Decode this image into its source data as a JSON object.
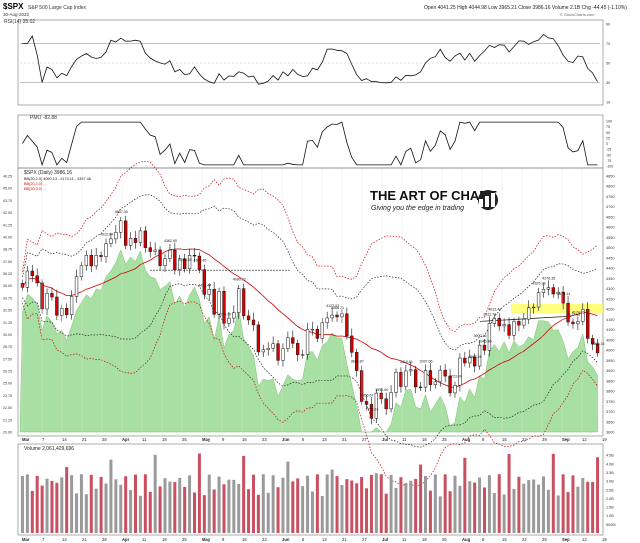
{
  "header": {
    "symbol": "$SPX",
    "name": "S&P 500 Large Cap Index",
    "exchange": "INDX",
    "date": "30-Aug-2022",
    "ohlc": "Open 4041.25  High 4044.98  Low 3965.21  Close 3986.16  Volume 2.1B  Chg -44.45 (-1.10%)",
    "copyright": "© StockCharts.com"
  },
  "rsi_panel": {
    "label": "RSI(14) 35.02",
    "ticks": [
      "90",
      "70",
      "50",
      "30",
      "10"
    ]
  },
  "pmo_panel": {
    "label": "PMO -82.88",
    "ticks": [
      "100",
      "75",
      "50",
      "25",
      "0",
      "-25",
      "-50",
      "-75",
      "-100"
    ]
  },
  "price_panel": {
    "label": "$SPX (Daily) 3986.16",
    "legend": [
      "BB(20,2.0) 4090.13 - 4174.11 - 4367.46",
      "BB(20,2.0) ...",
      "BB(20,3.0) ..."
    ],
    "left_ticks": [
      "46.25",
      "45.00",
      "43.75",
      "42.50",
      "41.25",
      "40.00",
      "38.75",
      "37.50",
      "36.25",
      "35.00",
      "33.75",
      "32.50",
      "31.25",
      "30.00",
      "28.75",
      "27.50",
      "26.25",
      "25.00",
      "23.75",
      "22.50",
      "21.25",
      "20.00"
    ],
    "right_ticks": [
      "4850",
      "4800",
      "4750",
      "4700",
      "4650",
      "4600",
      "4550",
      "4500",
      "4450",
      "4400",
      "4350",
      "4300",
      "4250",
      "4200",
      "4150",
      "4100",
      "4050",
      "4000",
      "3950",
      "3900",
      "3850",
      "3800",
      "3750",
      "3700",
      "3650",
      "3600"
    ],
    "annotations": [
      "4637.30",
      "4512.94",
      "4388.40",
      "4407.44",
      "4362.90",
      "4303.45",
      "4170.70",
      "4090.72",
      "4127.03",
      "4066.71",
      "3991.00",
      "3810.61",
      "3856.67",
      "3900.16",
      "3937.06",
      "3779.67",
      "3636.87",
      "3723.00",
      "3945.86",
      "3863.26",
      "4012.44",
      "3911.74",
      "4325.28",
      "4177.95",
      "4276.35",
      "4174.82",
      "4179.14",
      "3986.16"
    ],
    "watermark_title": "THE ART OF CHART",
    "watermark_tagline": "Giving you the edge in trading"
  },
  "volume_panel": {
    "label": "Volume 2,061,429,696",
    "ticks": [
      "4.5B",
      "4.0B",
      "3.5B",
      "3.0B",
      "2.5B",
      "2.0B",
      "1.5B",
      "1.0B",
      "500M"
    ]
  },
  "x_axis": {
    "labels": [
      "Mar",
      "7",
      "14",
      "21",
      "28",
      "Apr",
      "11",
      "18",
      "25",
      "May",
      "9",
      "16",
      "23",
      "Jun",
      "6",
      "13",
      "21",
      "27",
      "Jul",
      "11",
      "18",
      "25",
      "Aug",
      "8",
      "15",
      "22",
      "29",
      "Sep",
      "12",
      "19"
    ]
  },
  "colors": {
    "up": "#ffffff",
    "down": "#d40000",
    "band_fill": "#a8e0a3",
    "highlight": "#ffff66",
    "ma_red": "#cc0000"
  },
  "chart_data": {
    "type": "candlestick",
    "title": "$SPX (Daily) 3986.16",
    "ylim": [
      3600,
      4850
    ],
    "closes": [
      4306,
      4386,
      4363,
      4328,
      4201,
      4277,
      4259,
      4170,
      4204,
      4173,
      4262,
      4358,
      4412,
      4463,
      4411,
      4463,
      4456,
      4520,
      4543,
      4575,
      4631,
      4511,
      4546,
      4525,
      4582,
      4500,
      4481,
      4489,
      4412,
      4447,
      4488,
      4393,
      4446,
      4397,
      4463,
      4459,
      4393,
      4272,
      4297,
      4175,
      4287,
      4131,
      4156,
      4183,
      4300,
      4167,
      4147,
      4123,
      3991,
      4002,
      4009,
      4031,
      3950,
      4008,
      4060,
      4033,
      3977,
      3978,
      4102,
      4102,
      4057,
      4134,
      4157,
      4171,
      4162,
      4177,
      4069,
      3989,
      3900,
      3749,
      3735,
      3667,
      3790,
      3762,
      3713,
      3793,
      3892,
      3822,
      3898,
      3904,
      3820,
      3819,
      3900,
      3831,
      3845,
      3902,
      3873,
      3791,
      3828,
      3961,
      3937,
      3966,
      3922,
      4024,
      3999,
      4130,
      4155,
      4118,
      4124,
      4072,
      4140,
      4122,
      4151,
      4207,
      4210,
      4280,
      4297,
      4305,
      4274,
      4283,
      4229,
      4137,
      4128,
      4140,
      4199,
      4057,
      4030,
      3986
    ]
  }
}
